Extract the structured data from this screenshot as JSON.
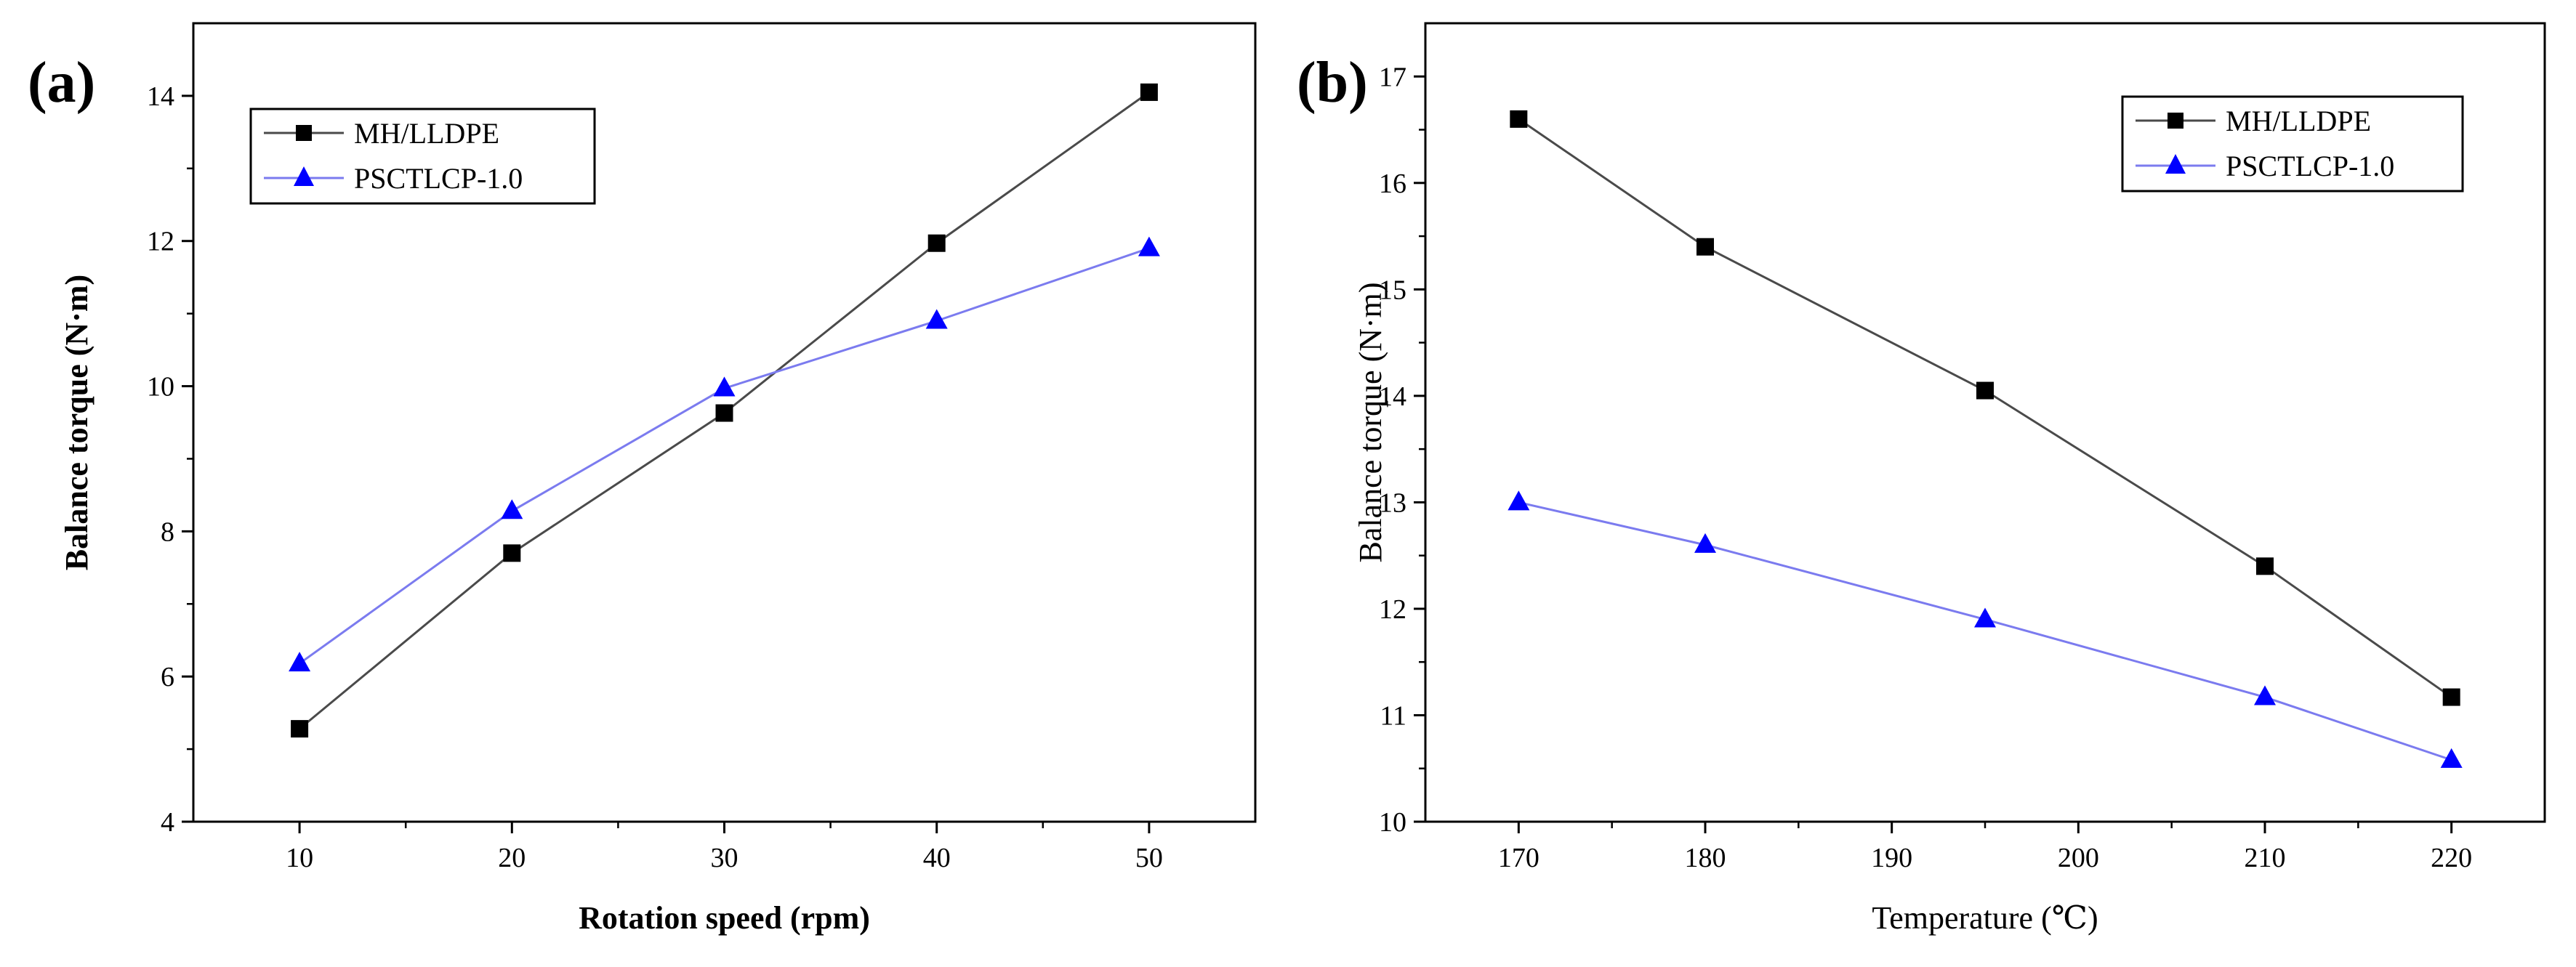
{
  "chart_data": [
    {
      "panel_label": "(a)",
      "type": "line",
      "xlabel": "Rotation speed (rpm)",
      "ylabel": "Balance torque (N·m)",
      "xlim": [
        5,
        55
      ],
      "ylim": [
        4,
        15
      ],
      "xticks": [
        10,
        20,
        30,
        40,
        50
      ],
      "yticks": [
        4,
        6,
        8,
        10,
        12,
        14
      ],
      "x": [
        10,
        20,
        30,
        40,
        50
      ],
      "series": [
        {
          "name": "MH/LLDPE",
          "values": [
            5.28,
            7.7,
            9.63,
            11.97,
            14.05
          ],
          "color": "#4a4a4a",
          "marker_color": "#000000",
          "marker": "square"
        },
        {
          "name": "PSCTLCP-1.0",
          "values": [
            6.18,
            8.28,
            9.97,
            10.9,
            11.9
          ],
          "color": "#7b7bef",
          "marker_color": "#0000ff",
          "marker": "triangle"
        }
      ],
      "legend": "top-left"
    },
    {
      "panel_label": "(b)",
      "type": "line",
      "xlabel": "Temperature (℃)",
      "ylabel": "Balance torque (N·m)",
      "xlim": [
        165,
        225
      ],
      "ylim": [
        10,
        17.5
      ],
      "xticks": [
        170,
        180,
        190,
        200,
        210,
        220
      ],
      "yticks": [
        10,
        11,
        12,
        13,
        14,
        15,
        16,
        17
      ],
      "x": [
        170,
        180,
        195,
        210,
        220
      ],
      "series": [
        {
          "name": "MH/LLDPE",
          "values": [
            16.6,
            15.4,
            14.05,
            12.4,
            11.17
          ],
          "color": "#4a4a4a",
          "marker_color": "#000000",
          "marker": "square"
        },
        {
          "name": "PSCTLCP-1.0",
          "values": [
            13.0,
            12.6,
            11.9,
            11.17,
            10.58
          ],
          "color": "#7b7bef",
          "marker_color": "#0000ff",
          "marker": "triangle"
        }
      ],
      "legend": "top-right"
    }
  ]
}
